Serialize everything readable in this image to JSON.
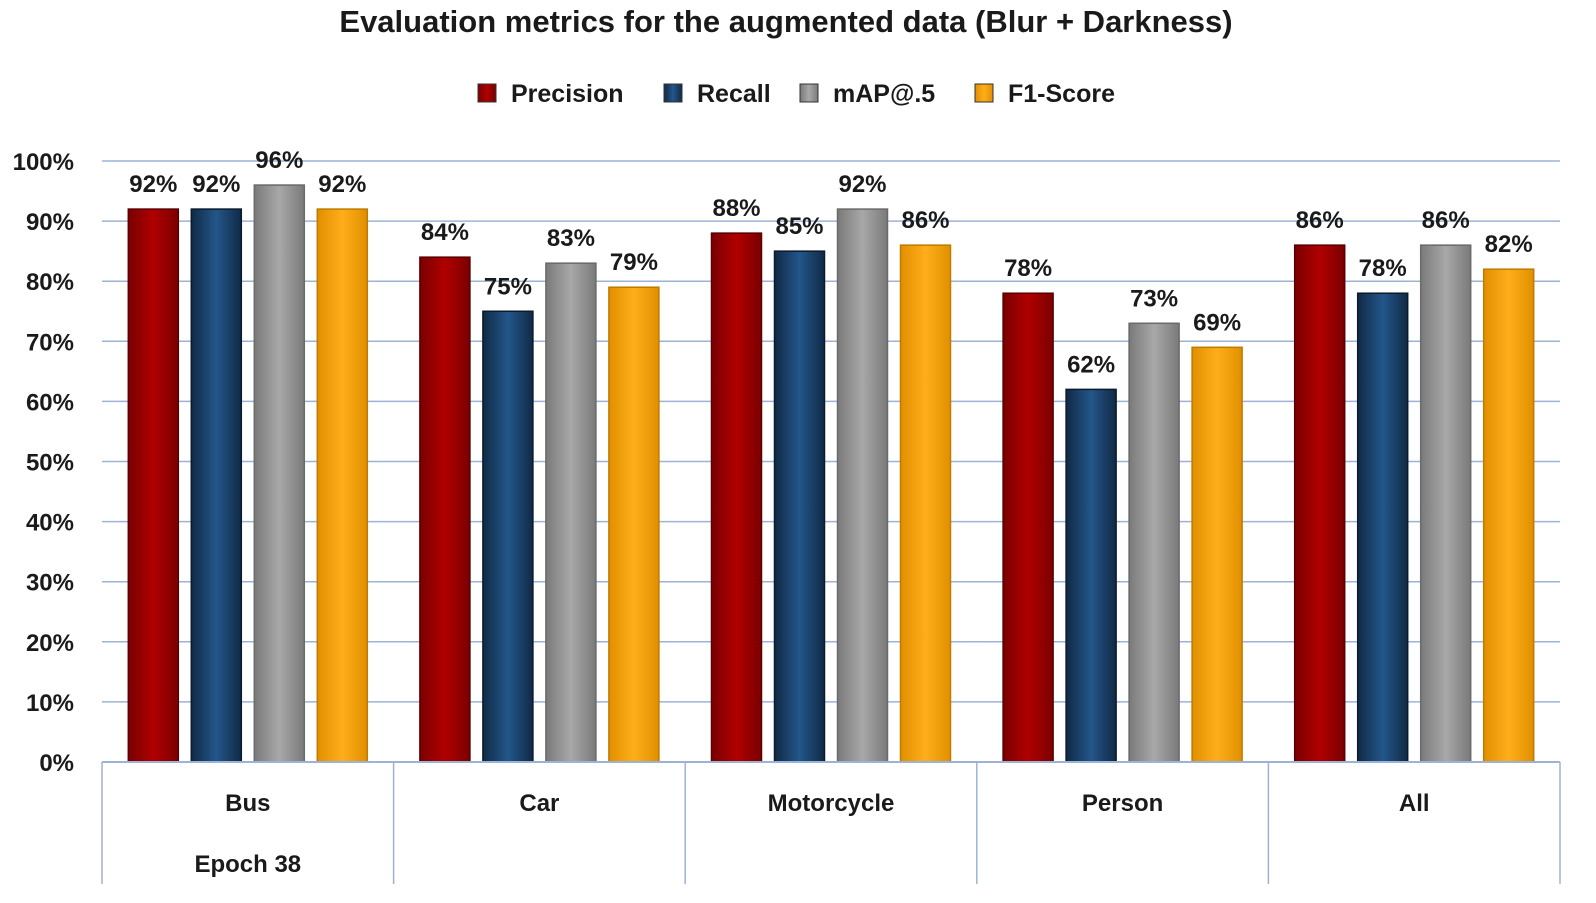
{
  "chart_data": {
    "type": "bar",
    "title": "Evaluation metrics for the augmented data (Blur + Darkness)",
    "categories": [
      "Bus",
      "Car",
      "Motorcycle",
      "Person",
      "All"
    ],
    "group_label": "Epoch 38",
    "series": [
      {
        "name": "Precision",
        "color": "#a00000",
        "values": [
          92,
          84,
          88,
          78,
          86
        ],
        "labels": [
          "92%",
          "84%",
          "88%",
          "78%",
          "86%"
        ]
      },
      {
        "name": "Recall",
        "color": "#1f4e79",
        "values": [
          92,
          75,
          85,
          62,
          78
        ],
        "labels": [
          "92%",
          "75%",
          "85%",
          "62%",
          "78%"
        ]
      },
      {
        "name": "mAP@.5",
        "color": "#9a9a9a",
        "values": [
          96,
          83,
          92,
          73,
          86
        ],
        "labels": [
          "96%",
          "83%",
          "92%",
          "73%",
          "86%"
        ]
      },
      {
        "name": "F1-Score",
        "color": "#ffa500",
        "values": [
          92,
          79,
          86,
          69,
          82
        ],
        "labels": [
          "92%",
          "79%",
          "86%",
          "69%",
          "82%"
        ]
      }
    ],
    "ylim": [
      0,
      100
    ],
    "yticks": [
      "0%",
      "10%",
      "20%",
      "30%",
      "40%",
      "50%",
      "60%",
      "70%",
      "80%",
      "90%",
      "100%"
    ],
    "xlabel": "",
    "ylabel": "",
    "grid": true,
    "legend_position": "top-center"
  }
}
